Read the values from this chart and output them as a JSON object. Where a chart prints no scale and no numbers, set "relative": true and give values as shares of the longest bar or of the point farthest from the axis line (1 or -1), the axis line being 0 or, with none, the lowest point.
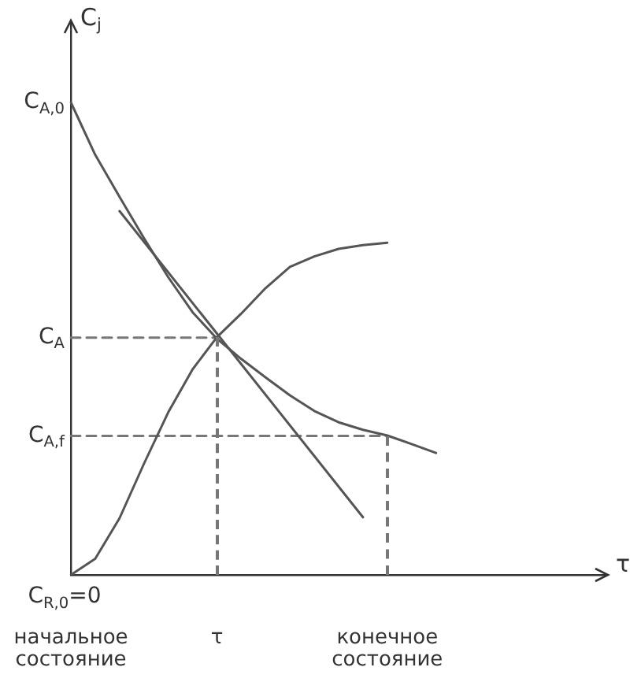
{
  "chart_data": {
    "type": "line",
    "relative": true,
    "xlabel": "τ",
    "ylabel": "C$_{j}$",
    "marker": "none",
    "line_style": "solid",
    "legend": false,
    "grid": false,
    "tick_labels": "x",
    "categories": [
      "начальное\nсостояние",
      null,
      null,
      null,
      null,
      null,
      "τ",
      null,
      null,
      null,
      null,
      null,
      null,
      "конечное\nсостояние",
      null,
      null,
      null,
      null,
      null,
      null,
      null,
      null,
      null
    ],
    "series": [
      {
        "name": "C$_{A,0}$",
        "color": "#555555",
        "values": [
          1,
          0.889,
          0.8,
          0.713,
          0.63,
          0.556,
          0.5,
          0.457,
          0.418,
          0.38,
          0.347,
          0.323,
          0.307,
          0.295,
          0.277,
          0.258,
          null,
          null,
          null,
          null,
          null,
          null,
          null
        ]
      },
      {
        "name": "C$_{R,0}$=0",
        "color": "#555555",
        "values": [
          0,
          0.034,
          0.12,
          0.235,
          0.344,
          0.435,
          0.503,
          0.553,
          0.607,
          0.652,
          0.674,
          0.69,
          0.698,
          0.703,
          null,
          null,
          null,
          null,
          null,
          null,
          null,
          null,
          null
        ]
      },
      {
        "color": "#555555",
        "values": [
          null,
          null,
          0.77,
          null,
          null,
          null,
          null,
          null,
          null,
          null,
          null,
          null,
          0.122,
          null,
          null,
          null,
          null,
          null,
          null,
          null,
          null,
          null,
          null
        ]
      },
      {
        "name": "C$_{A}$",
        "color": "#777777",
        "line_style": "dashed",
        "values": [
          0.502,
          0.502,
          0.502,
          0.502,
          0.502,
          0.502,
          0.502,
          null,
          null,
          null,
          null,
          null,
          null,
          null,
          null,
          null,
          null,
          null,
          null,
          null,
          null,
          null,
          null
        ]
      },
      {
        "name": "C$_{A,f}$",
        "color": "#777777",
        "line_style": "dashed",
        "values": [
          0.294,
          0.294,
          0.294,
          0.294,
          0.294,
          0.294,
          0.294,
          0.294,
          0.294,
          0.294,
          0.294,
          0.294,
          0.294,
          0.294,
          null,
          null,
          null,
          null,
          null,
          null,
          null,
          null,
          null
        ]
      }
    ]
  }
}
